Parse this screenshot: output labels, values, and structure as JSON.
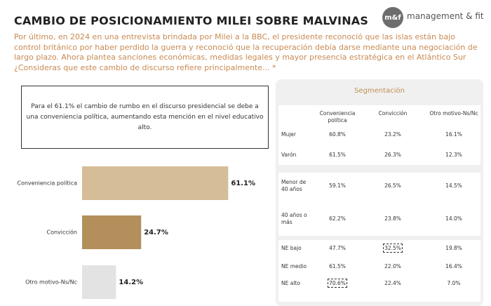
{
  "title": "CAMBIO DE POSICIONAMIENTO MILEI SOBRE MALVINAS",
  "logo": {
    "mark": "m&f",
    "text": "management & fit"
  },
  "question": "Por último, en 2024 en una entrevista brindada por Milei a la BBC, el presidente reconoció que las islas están bajo control británico por haber perdido la guerra y reconoció que la recuperación debía darse mediante una negociación de largo plazo. Ahora plantea sanciones económicas, medidas legales y mayor presencia estratégica en el Atlántico Sur ¿Consideras que este cambio de discurso refiere principalmente... *",
  "note": "Para el 61.1% el cambio de rumbo en el discurso presidencial se debe a una conveniencia política, aumentando esta mención en el nivel educativo alto.",
  "chart_data": {
    "type": "bar",
    "orientation": "horizontal",
    "categories": [
      "Conveniencia política",
      "Convicción",
      "Otro motivo-Ns/Nc"
    ],
    "values": [
      61.1,
      24.7,
      14.2
    ],
    "value_labels": [
      "61.1%",
      "24.7%",
      "14.2%"
    ],
    "colors": [
      "#d5bd98",
      "#b38f5c",
      "#e3e3e3"
    ]
  },
  "segmentation": {
    "title": "Segmentación",
    "columns": [
      "Conveniencia política",
      "Convicción",
      "Otro motivo-Ns/Nc"
    ],
    "groups": [
      {
        "rows": [
          {
            "label": "Mujer",
            "values": [
              "60.8%",
              "23.2%",
              "16.1%"
            ]
          },
          {
            "label": "Varón",
            "values": [
              "61.5%",
              "26.3%",
              "12.3%"
            ]
          }
        ]
      },
      {
        "rows": [
          {
            "label": "Menor de 40 años",
            "values": [
              "59.1%",
              "26.5%",
              "14.5%"
            ]
          },
          {
            "label": "40 años o más",
            "values": [
              "62.2%",
              "23.8%",
              "14.0%"
            ]
          }
        ]
      },
      {
        "rows": [
          {
            "label": "NE bajo",
            "values": [
              "47.7%",
              "32.5%",
              "19.8%"
            ]
          },
          {
            "label": "NE medio",
            "values": [
              "61.5%",
              "22.0%",
              "16.4%"
            ]
          },
          {
            "label": "NE alto",
            "values": [
              "70.6%",
              "22.4%",
              "7.0%"
            ]
          }
        ]
      }
    ]
  }
}
